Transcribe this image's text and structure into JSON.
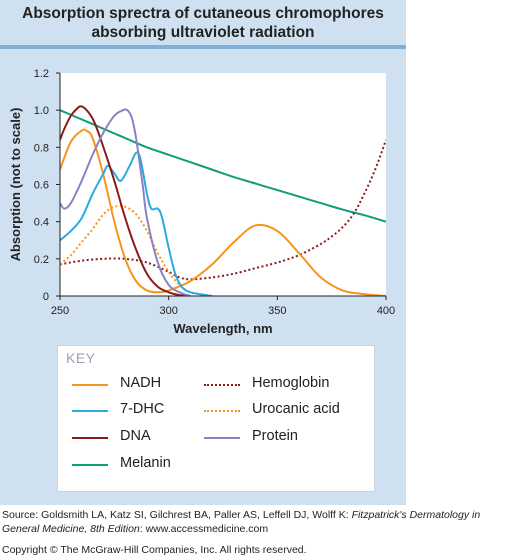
{
  "title_line1": "Absorption sprectra of cutaneous chromophores",
  "title_line2": "absorbing ultraviolet radiation",
  "key": {
    "title": "KEY",
    "items": [
      {
        "label": "NADH",
        "color": "#f7941d",
        "style": "solid"
      },
      {
        "label": "Hemoglobin",
        "color": "#8b1a1a",
        "style": "dotted"
      },
      {
        "label": "7-DHC",
        "color": "#29abe2",
        "style": "solid"
      },
      {
        "label": "Urocanic acid",
        "color": "#f7941d",
        "style": "dotted"
      },
      {
        "label": "DNA",
        "color": "#8b1a1a",
        "style": "solid"
      },
      {
        "label": "Protein",
        "color": "#8b82c4",
        "style": "solid"
      },
      {
        "label": "Melanin",
        "color": "#0f9e78",
        "style": "solid"
      }
    ]
  },
  "source_prefix": "Source: Goldsmith LA, Katz SI, Gilchrest BA, Paller AS, Leffell DJ, Wolff K: ",
  "source_italic": "Fitzpatrick's Dermatology in General Medicine, 8th Edition",
  "source_suffix": ": www.accessmedicine.com",
  "copyright": "Copyright © The McGraw-Hill Companies, Inc. All rights reserved.",
  "chart_data": {
    "type": "line",
    "xlabel": "Wavelength, nm",
    "ylabel": "Absorption (not to scale)",
    "xlim": [
      250,
      400
    ],
    "ylim": [
      0,
      1.2
    ],
    "xticks": [
      250,
      300,
      350,
      400
    ],
    "yticks": [
      0,
      0.2,
      0.4,
      0.6,
      0.8,
      1.0,
      1.2
    ],
    "ytick_labels": [
      "0",
      "0.2",
      "0.4",
      "0.6",
      "0.8",
      "1.0",
      "1.2"
    ],
    "grid": false,
    "series": [
      {
        "name": "Melanin",
        "color": "#0f9e78",
        "style": "solid",
        "x": [
          250,
          260,
          270,
          280,
          290,
          300,
          310,
          320,
          330,
          340,
          350,
          360,
          370,
          380,
          390,
          400
        ],
        "y": [
          1.0,
          0.95,
          0.9,
          0.85,
          0.8,
          0.76,
          0.72,
          0.68,
          0.64,
          0.605,
          0.57,
          0.535,
          0.5,
          0.465,
          0.435,
          0.4
        ]
      },
      {
        "name": "Hemoglobin",
        "color": "#8b1a1a",
        "style": "dotted",
        "x": [
          250,
          260,
          270,
          280,
          290,
          300,
          305,
          310,
          320,
          330,
          340,
          350,
          360,
          370,
          375,
          380,
          385,
          390,
          395,
          400
        ],
        "y": [
          0.17,
          0.19,
          0.2,
          0.2,
          0.18,
          0.13,
          0.1,
          0.09,
          0.1,
          0.12,
          0.15,
          0.18,
          0.22,
          0.28,
          0.32,
          0.37,
          0.44,
          0.55,
          0.68,
          0.84
        ]
      },
      {
        "name": "Urocanic acid",
        "color": "#f7941d",
        "style": "dotted",
        "x": [
          250,
          255,
          260,
          265,
          270,
          275,
          280,
          285,
          290,
          295,
          300,
          305,
          310,
          315,
          320
        ],
        "y": [
          0.17,
          0.22,
          0.29,
          0.36,
          0.44,
          0.48,
          0.48,
          0.44,
          0.35,
          0.23,
          0.13,
          0.06,
          0.02,
          0.01,
          0.0
        ]
      },
      {
        "name": "NADH",
        "color": "#f7941d",
        "style": "solid",
        "x": [
          250,
          255,
          260,
          262,
          265,
          270,
          275,
          280,
          285,
          290,
          295,
          300,
          310,
          320,
          330,
          340,
          350,
          360,
          370,
          380,
          390,
          400
        ],
        "y": [
          0.68,
          0.83,
          0.89,
          0.89,
          0.85,
          0.65,
          0.4,
          0.2,
          0.08,
          0.03,
          0.02,
          0.03,
          0.08,
          0.17,
          0.29,
          0.38,
          0.35,
          0.23,
          0.1,
          0.03,
          0.01,
          0.0
        ]
      },
      {
        "name": "7-DHC",
        "color": "#29abe2",
        "style": "solid",
        "x": [
          250,
          255,
          260,
          265,
          270,
          272,
          275,
          278,
          282,
          285,
          287,
          290,
          292,
          295,
          297,
          300,
          303,
          306,
          310,
          320
        ],
        "y": [
          0.3,
          0.35,
          0.42,
          0.55,
          0.66,
          0.7,
          0.66,
          0.62,
          0.7,
          0.77,
          0.74,
          0.55,
          0.47,
          0.47,
          0.42,
          0.26,
          0.12,
          0.05,
          0.02,
          0.0
        ]
      },
      {
        "name": "DNA",
        "color": "#8b1a1a",
        "style": "solid",
        "x": [
          250,
          252,
          255,
          258,
          260,
          263,
          266,
          270,
          275,
          280,
          285,
          290,
          295,
          300,
          305,
          310
        ],
        "y": [
          0.84,
          0.9,
          0.97,
          1.01,
          1.02,
          0.99,
          0.93,
          0.8,
          0.62,
          0.42,
          0.25,
          0.12,
          0.05,
          0.02,
          0.005,
          0.0
        ]
      },
      {
        "name": "Protein",
        "color": "#8b82c4",
        "style": "solid",
        "x": [
          250,
          252,
          255,
          260,
          265,
          270,
          275,
          279,
          281,
          283,
          285,
          288,
          290,
          295,
          300,
          305,
          310
        ],
        "y": [
          0.5,
          0.47,
          0.5,
          0.62,
          0.76,
          0.88,
          0.97,
          1.0,
          1.0,
          0.96,
          0.85,
          0.6,
          0.42,
          0.18,
          0.06,
          0.02,
          0.0
        ]
      }
    ]
  }
}
